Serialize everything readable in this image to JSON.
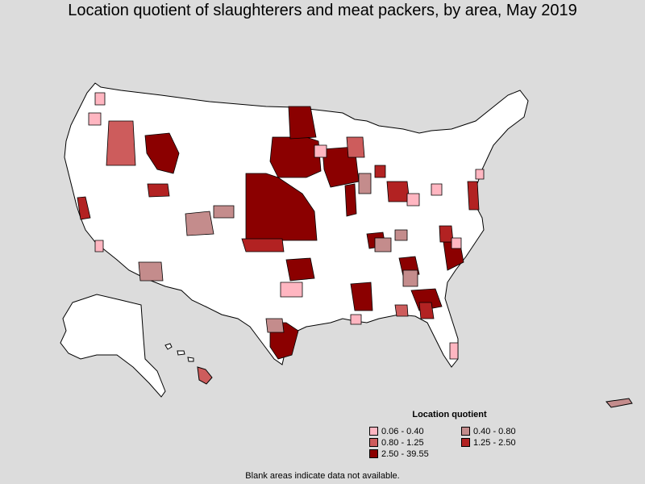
{
  "title": "Location quotient of slaughterers and meat packers, by area, May 2019",
  "legend": {
    "title": "Location quotient",
    "items": [
      {
        "label": "0.06 - 0.40",
        "color": "#ffb6c1"
      },
      {
        "label": "0.40 - 0.80",
        "color": "#c48c8c"
      },
      {
        "label": "0.80 - 1.25",
        "color": "#cd5c5c"
      },
      {
        "label": "1.25 - 2.50",
        "color": "#b22222"
      },
      {
        "label": "2.50 - 39.55",
        "color": "#8b0000"
      }
    ]
  },
  "note": "Blank areas indicate data not available.",
  "colors": {
    "background": "#dcdcdc",
    "land": "#ffffff",
    "border": "#000000"
  }
}
